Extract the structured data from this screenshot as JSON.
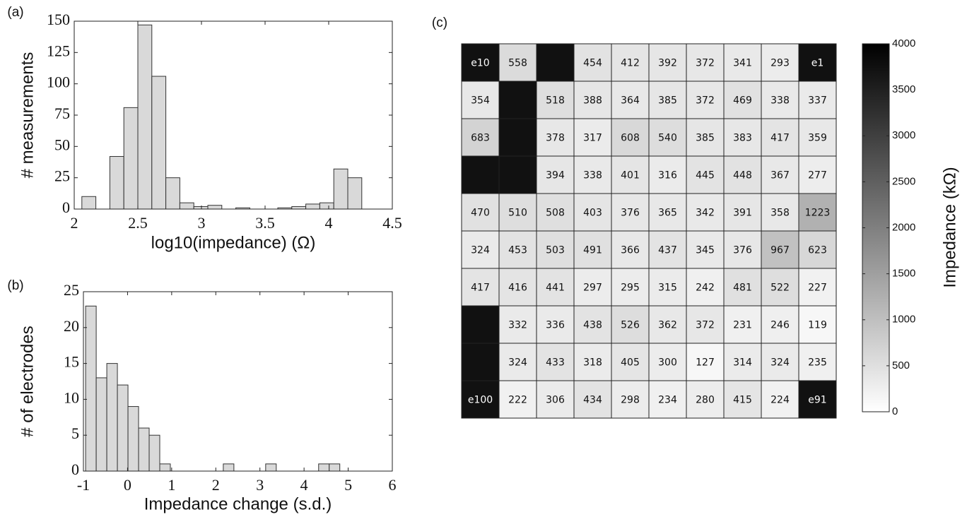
{
  "chart_data": [
    {
      "type": "histogram",
      "panel_label": "(a)",
      "xlabel": "log10(impedance) (Ω)",
      "ylabel": "# measurements",
      "bins": [
        2.06,
        2.17,
        2.28,
        2.39,
        2.5,
        2.61,
        2.72,
        2.83,
        2.94,
        3.05,
        3.16,
        3.27,
        3.38,
        3.49,
        3.6,
        3.71,
        3.82,
        3.93,
        4.04,
        4.15,
        4.26
      ],
      "counts": [
        10,
        0,
        42,
        81,
        147,
        106,
        25,
        5,
        2,
        3,
        0,
        1,
        0,
        0,
        1,
        2,
        4,
        5,
        32,
        25
      ],
      "color": "#d9d9d9",
      "xlim": [
        2,
        4.5
      ],
      "xticks": [
        2,
        2.5,
        3,
        3.5,
        4,
        4.5
      ],
      "ylim": [
        0,
        150
      ],
      "yticks": [
        0,
        25,
        50,
        75,
        100,
        125,
        150
      ]
    },
    {
      "type": "histogram",
      "panel_label": "(b)",
      "xlabel": "Impedance change (s.d.)",
      "ylabel": "# of electrodes",
      "bins": [
        -0.95,
        -0.71,
        -0.47,
        -0.23,
        0.01,
        0.25,
        0.49,
        0.73,
        0.97,
        1.21,
        1.45,
        1.69,
        1.93,
        2.17,
        2.41,
        2.65,
        2.89,
        3.13,
        3.37,
        3.61,
        3.85,
        4.09,
        4.33,
        4.57,
        4.81,
        5.05
      ],
      "counts": [
        23,
        13,
        15,
        12,
        9,
        6,
        5,
        1,
        0,
        0,
        0,
        0,
        0,
        1,
        0,
        0,
        0,
        1,
        0,
        0,
        0,
        0,
        1,
        1,
        0
      ],
      "color": "#d9d9d9",
      "xlim": [
        -1,
        6
      ],
      "xticks": [
        -1,
        0,
        1,
        2,
        3,
        4,
        5,
        6
      ],
      "ylim": [
        0,
        25
      ],
      "yticks": [
        0,
        5,
        10,
        15,
        20,
        25
      ]
    },
    {
      "type": "heatmap",
      "panel_label": "(c)",
      "cells": [
        [
          "e10",
          558,
          null,
          454,
          412,
          392,
          372,
          341,
          293,
          "e1"
        ],
        [
          354,
          null,
          518,
          388,
          364,
          385,
          372,
          469,
          338,
          337
        ],
        [
          683,
          null,
          378,
          317,
          608,
          540,
          385,
          383,
          417,
          359
        ],
        [
          null,
          null,
          394,
          338,
          401,
          316,
          445,
          448,
          367,
          277
        ],
        [
          470,
          510,
          508,
          403,
          376,
          365,
          342,
          391,
          358,
          1223
        ],
        [
          324,
          453,
          503,
          491,
          366,
          437,
          345,
          376,
          967,
          623
        ],
        [
          417,
          416,
          441,
          297,
          295,
          315,
          242,
          481,
          522,
          227
        ],
        [
          null,
          332,
          336,
          438,
          526,
          362,
          372,
          231,
          246,
          119
        ],
        [
          null,
          324,
          433,
          318,
          405,
          300,
          127,
          314,
          324,
          235
        ],
        [
          "e100",
          222,
          306,
          434,
          298,
          234,
          280,
          415,
          224,
          "e91"
        ]
      ],
      "colorbar_label": "Impedance (kΩ)",
      "clim": [
        0,
        4000
      ],
      "cticks": [
        0,
        500,
        1000,
        1500,
        2000,
        2500,
        3000,
        3500,
        4000
      ]
    }
  ]
}
